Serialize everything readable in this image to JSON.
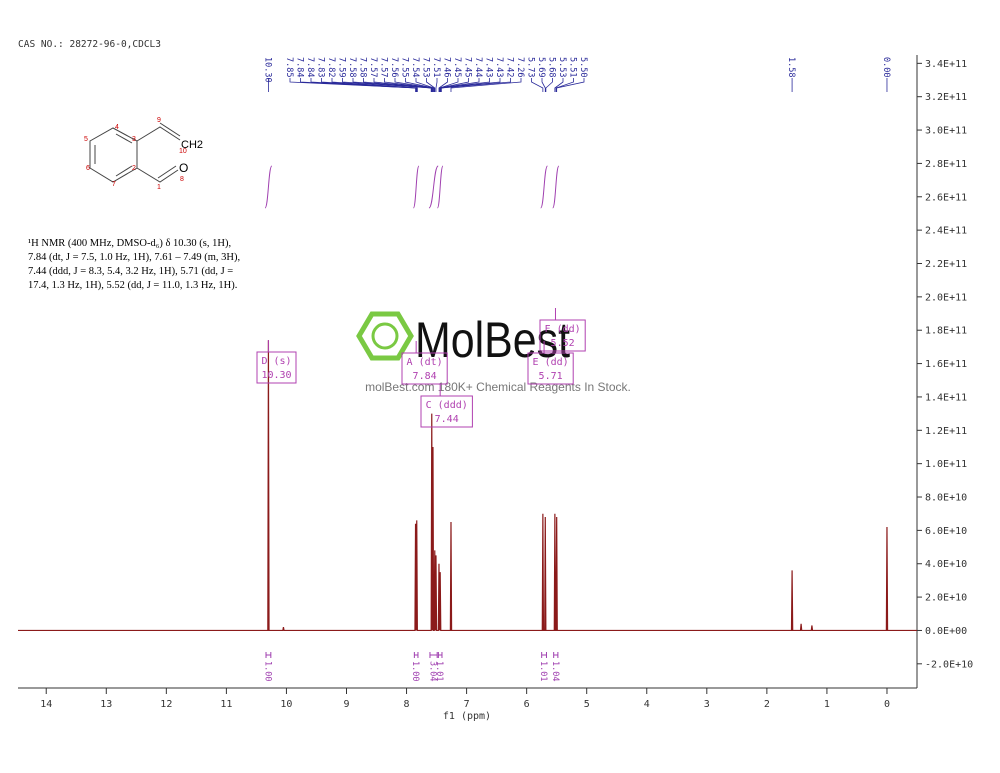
{
  "header": {
    "title": "CAS NO.: 28272-96-0,CDCL3"
  },
  "structure": {
    "labels": [
      "5",
      "4",
      "3",
      "9",
      "CH2",
      "10",
      "2",
      "6",
      "7",
      "1",
      "O",
      "8"
    ]
  },
  "description": {
    "lines": [
      "¹H NMR (400 MHz, DMSO-d₆) δ 10.30 (s, 1H),",
      "7.84 (dt, J = 7.5, 1.0 Hz, 1H), 7.61 – 7.49 (m, 3H),",
      "7.44 (ddd, J = 8.3, 5.4, 3.2 Hz, 1H), 5.71 (dd, J =",
      "17.4, 1.3 Hz, 1H), 5.52 (dd, J = 11.0, 1.3 Hz, 1H)."
    ]
  },
  "watermark": {
    "brand": "MolBest",
    "tagline": "molBest.com 180K+ Chemical Reagents In Stock."
  },
  "chart_data": {
    "type": "line",
    "color": "#8b1a1a",
    "x_label": "f1 (ppm)",
    "x": [
      14.47,
      10.31,
      10.3,
      10.29,
      10.06,
      10.05,
      10.04,
      7.86,
      7.85,
      7.84,
      7.84,
      7.83,
      7.82,
      7.59,
      7.58,
      7.57,
      7.57,
      7.56,
      7.55,
      7.54,
      7.53,
      7.52,
      7.52,
      7.51,
      7.5,
      7.47,
      7.46,
      7.45,
      7.45,
      7.44,
      7.43,
      7.27,
      7.26,
      7.25,
      5.74,
      5.73,
      5.72,
      5.7,
      5.69,
      5.68,
      5.54,
      5.53,
      5.52,
      5.51,
      5.5,
      5.49,
      1.59,
      1.58,
      1.57,
      1.44,
      1.43,
      1.42,
      1.26,
      1.25,
      1.24,
      0.01,
      0.0,
      -0.01,
      -0.5
    ],
    "values": [
      0,
      0,
      174000000000.0,
      0,
      0,
      2000000000.0,
      0,
      0,
      64000000000.0,
      0,
      0,
      66000000000.0,
      0,
      0,
      130000000000.0,
      0,
      0,
      110000000000.0,
      0,
      0,
      48000000000.0,
      0,
      0,
      45000000000.0,
      0,
      0,
      40000000000.0,
      0,
      0,
      35000000000.0,
      0,
      0,
      65000000000.0,
      0,
      0,
      70000000000.0,
      0,
      0,
      68000000000.0,
      0,
      0,
      70000000000.0,
      0,
      0,
      68000000000.0,
      0,
      0,
      36000000000.0,
      0,
      0,
      4000000000.0,
      0,
      0,
      3000000000.0,
      0,
      0,
      62000000000.0,
      0,
      0
    ],
    "xlim": [
      14.47,
      -0.5
    ],
    "xticks": [
      14,
      13,
      12,
      11,
      10,
      9,
      8,
      7,
      6,
      5,
      4,
      3,
      2,
      1,
      0
    ],
    "ylim": [
      -34500000000.0,
      345000000000.0
    ],
    "yticks": [
      {
        "value": 340000000000.0,
        "label": "3.4E+11"
      },
      {
        "value": 320000000000.0,
        "label": "3.2E+11"
      },
      {
        "value": 300000000000.0,
        "label": "3.0E+11"
      },
      {
        "value": 280000000000.0,
        "label": "2.8E+11"
      },
      {
        "value": 260000000000.0,
        "label": "2.6E+11"
      },
      {
        "value": 240000000000.0,
        "label": "2.4E+11"
      },
      {
        "value": 220000000000.0,
        "label": "2.2E+11"
      },
      {
        "value": 200000000000.0,
        "label": "2.0E+11"
      },
      {
        "value": 180000000000.0,
        "label": "1.8E+11"
      },
      {
        "value": 160000000000.0,
        "label": "1.6E+11"
      },
      {
        "value": 140000000000.0,
        "label": "1.4E+11"
      },
      {
        "value": 120000000000.0,
        "label": "1.2E+11"
      },
      {
        "value": 100000000000.0,
        "label": "1.0E+11"
      },
      {
        "value": 80000000000.0,
        "label": "8.0E+10"
      },
      {
        "value": 60000000000.0,
        "label": "6.0E+10"
      },
      {
        "value": 40000000000.0,
        "label": "4.0E+10"
      },
      {
        "value": 20000000000.0,
        "label": "2.0E+10"
      },
      {
        "value": 0,
        "label": "0.0E+00"
      },
      {
        "value": -20000000000.0,
        "label": "-2.0E+10"
      }
    ],
    "peak_labels": [
      {
        "value": 10.3,
        "label": "10.30"
      },
      {
        "value": 7.85,
        "label": "7.85"
      },
      {
        "value": 7.84,
        "label": "7.84"
      },
      {
        "value": 7.84,
        "label": "7.84"
      },
      {
        "value": 7.83,
        "label": "7.83"
      },
      {
        "value": 7.82,
        "label": "7.82"
      },
      {
        "value": 7.59,
        "label": "7.59"
      },
      {
        "value": 7.58,
        "label": "7.58"
      },
      {
        "value": 7.58,
        "label": "7.58"
      },
      {
        "value": 7.57,
        "label": "7.57"
      },
      {
        "value": 7.57,
        "label": "7.57"
      },
      {
        "value": 7.56,
        "label": "7.56"
      },
      {
        "value": 7.55,
        "label": "7.55"
      },
      {
        "value": 7.54,
        "label": "7.54"
      },
      {
        "value": 7.53,
        "label": "7.53"
      },
      {
        "value": 7.51,
        "label": "7.51"
      },
      {
        "value": 7.46,
        "label": "7.46"
      },
      {
        "value": 7.45,
        "label": "7.45"
      },
      {
        "value": 7.45,
        "label": "7.45"
      },
      {
        "value": 7.44,
        "label": "7.44"
      },
      {
        "value": 7.43,
        "label": "7.43"
      },
      {
        "value": 7.43,
        "label": "7.43"
      },
      {
        "value": 7.42,
        "label": "7.42"
      },
      {
        "value": 7.26,
        "label": "7.26"
      },
      {
        "value": 5.73,
        "label": "5.73"
      },
      {
        "value": 5.69,
        "label": "5.69"
      },
      {
        "value": 5.68,
        "label": "5.68"
      },
      {
        "value": 5.53,
        "label": "5.53"
      },
      {
        "value": 5.51,
        "label": "5.51"
      },
      {
        "value": 5.5,
        "label": "5.50"
      },
      {
        "value": 1.58,
        "label": "1.58"
      },
      {
        "value": 0.0,
        "label": "0.00"
      }
    ],
    "multiplets": [
      {
        "name": "D (s)",
        "shift": {
          "value": 10.3,
          "label": "10.30"
        }
      },
      {
        "name": "A (dt)",
        "shift": {
          "value": 7.84,
          "label": "7.84"
        }
      },
      {
        "name": "C (ddd)",
        "shift": {
          "value": 7.44,
          "label": "7.44"
        }
      },
      {
        "name": "E (dd)",
        "shift": {
          "value": 5.71,
          "label": "5.71"
        }
      },
      {
        "name": "F (dd)",
        "shift": {
          "value": 5.52,
          "label": "5.52"
        }
      }
    ],
    "integrals": [
      {
        "from": 10.34,
        "to": 10.26,
        "value": 1.0,
        "label": "1.00"
      },
      {
        "from": 7.87,
        "to": 7.81,
        "value": 1.0,
        "label": "1.00"
      },
      {
        "from": 7.61,
        "to": 7.49,
        "value": 3.04,
        "label": "3.04"
      },
      {
        "from": 7.47,
        "to": 7.41,
        "value": 1.01,
        "label": "1.01"
      },
      {
        "from": 5.75,
        "to": 5.67,
        "value": 1.01,
        "label": "1.01"
      },
      {
        "from": 5.55,
        "to": 5.48,
        "value": 1.04,
        "label": "1.04"
      }
    ]
  }
}
